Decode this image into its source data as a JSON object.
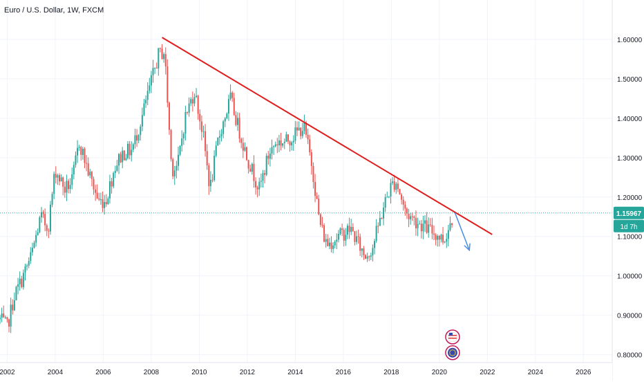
{
  "header": {
    "symbol_title": "Euro / U.S. Dollar, 1W, FXCM"
  },
  "colors": {
    "up_candle": "#26a69a",
    "down_candle": "#ef5350",
    "trendline": "#e01e1e",
    "arrow": "#4a90e2",
    "price_line": "#26a69a",
    "grid": "#f0f3fa",
    "axis_text": "#131722"
  },
  "chart_data": {
    "type": "line",
    "title": "",
    "xlabel": "",
    "ylabel": "",
    "xlim": [
      2001.7,
      2027.2
    ],
    "ylim": [
      0.78,
      1.7
    ],
    "x_ticks": [
      "2002",
      "2004",
      "2006",
      "2008",
      "2010",
      "2012",
      "2014",
      "2016",
      "2018",
      "2020",
      "2022",
      "2024",
      "2026"
    ],
    "y_ticks": [
      "0.80000",
      "0.90000",
      "1.00000",
      "1.10000",
      "1.20000",
      "1.30000",
      "1.40000",
      "1.50000",
      "1.60000"
    ],
    "grid": true,
    "series": [
      {
        "style": "candlestick",
        "x": [
          2001.7,
          2002.0,
          2002.3,
          2002.6,
          2003.0,
          2003.4,
          2003.7,
          2004.0,
          2004.4,
          2004.7,
          2005.0,
          2005.4,
          2005.8,
          2006.1,
          2006.5,
          2006.8,
          2007.2,
          2007.6,
          2007.9,
          2008.3,
          2008.55,
          2008.85,
          2009.1,
          2009.4,
          2009.8,
          2010.15,
          2010.45,
          2010.8,
          2011.3,
          2011.7,
          2012.0,
          2012.5,
          2012.9,
          2013.2,
          2013.6,
          2014.0,
          2014.35,
          2014.7,
          2015.0,
          2015.3,
          2015.8,
          2016.3,
          2016.9,
          2017.2,
          2017.7,
          2018.0,
          2018.2,
          2018.6,
          2019.0,
          2019.5,
          2020.0,
          2020.2,
          2020.6
        ],
        "values": [
          0.89,
          0.87,
          0.95,
          0.99,
          1.05,
          1.15,
          1.12,
          1.27,
          1.22,
          1.24,
          1.34,
          1.26,
          1.19,
          1.19,
          1.28,
          1.31,
          1.32,
          1.4,
          1.47,
          1.56,
          1.57,
          1.27,
          1.28,
          1.4,
          1.47,
          1.36,
          1.22,
          1.35,
          1.45,
          1.36,
          1.3,
          1.22,
          1.31,
          1.34,
          1.34,
          1.36,
          1.38,
          1.28,
          1.14,
          1.08,
          1.1,
          1.12,
          1.05,
          1.07,
          1.18,
          1.23,
          1.24,
          1.16,
          1.14,
          1.12,
          1.1,
          1.09,
          1.16
        ]
      }
    ],
    "annotations": {
      "trendline": {
        "x": [
          2008.45,
          2022.2
        ],
        "y": [
          1.605,
          1.105
        ]
      },
      "arrow": {
        "x": [
          2020.65,
          2021.25
        ],
        "y": [
          1.16,
          1.065
        ]
      },
      "current_price": {
        "value": 1.15967,
        "label": "1.15967",
        "countdown": "1d 7h"
      },
      "events": [
        {
          "x": 2020.55,
          "y": 0.845,
          "icon": "us-flag-icon"
        },
        {
          "x": 2020.55,
          "y": 0.805,
          "icon": "eu-flag-icon"
        }
      ]
    }
  }
}
